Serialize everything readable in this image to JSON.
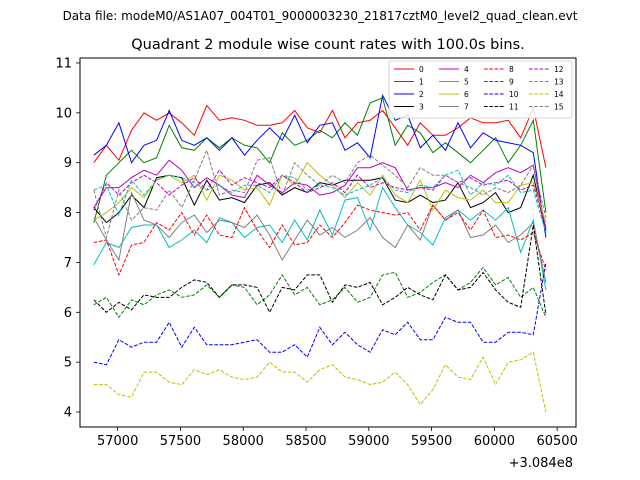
{
  "chart_data": {
    "type": "line",
    "suptitle": "Data file: modeM0/AS1A07_004T01_9000003230_21817cztM0_level2_quad_clean.evt",
    "title": "Quadrant 2 module wise count rates with 100.0s bins.",
    "xlabel": "",
    "ylabel": "",
    "x_offset_label": "+3.084e8",
    "xlim": [
      56700,
      60650
    ],
    "ylim": [
      3.7,
      11.1
    ],
    "xticks": [
      57000,
      57500,
      58000,
      58500,
      59000,
      59500,
      60000,
      60500
    ],
    "yticks": [
      4,
      5,
      6,
      7,
      8,
      9,
      10,
      11
    ],
    "grid": false,
    "legend_position": "upper right",
    "x": [
      56810,
      56910,
      57010,
      57110,
      57210,
      57310,
      57410,
      57510,
      57610,
      57710,
      57810,
      57910,
      58010,
      58110,
      58210,
      58310,
      58410,
      58510,
      58610,
      58710,
      58810,
      58910,
      59010,
      59110,
      59210,
      59310,
      59410,
      59510,
      59610,
      59710,
      59810,
      59910,
      60010,
      60110,
      60210,
      60310,
      60410
    ],
    "series": [
      {
        "name": "0",
        "color": "#ff0000",
        "dash": "solid",
        "values": [
          9.0,
          9.35,
          9.05,
          9.65,
          10.0,
          9.85,
          10.0,
          9.8,
          9.55,
          10.15,
          9.85,
          9.9,
          9.85,
          9.75,
          9.75,
          9.8,
          10.05,
          9.7,
          9.6,
          10.05,
          9.5,
          9.8,
          9.85,
          10.05,
          9.7,
          9.35,
          9.8,
          9.55,
          9.55,
          9.7,
          9.9,
          9.8,
          9.8,
          9.85,
          9.5,
          10.1,
          8.9
        ]
      },
      {
        "name": "1",
        "color": "#008000",
        "dash": "solid",
        "values": [
          7.8,
          8.75,
          9.0,
          9.25,
          9.0,
          9.1,
          9.75,
          9.3,
          9.25,
          9.5,
          9.3,
          9.5,
          9.35,
          9.3,
          9.0,
          9.6,
          9.35,
          9.45,
          9.65,
          9.5,
          9.8,
          9.55,
          10.2,
          10.3,
          9.35,
          9.75,
          9.6,
          9.2,
          9.4,
          9.2,
          9.0,
          9.25,
          9.5,
          9.0,
          9.35,
          9.85,
          8.0
        ]
      },
      {
        "name": "2",
        "color": "#0000ff",
        "dash": "solid",
        "values": [
          9.15,
          9.35,
          9.8,
          9.0,
          9.35,
          9.45,
          10.05,
          9.45,
          9.35,
          9.5,
          9.25,
          9.5,
          9.15,
          9.45,
          9.7,
          9.45,
          9.95,
          9.4,
          9.75,
          9.8,
          9.25,
          9.4,
          9.1,
          10.35,
          9.85,
          9.95,
          9.3,
          9.55,
          9.25,
          9.8,
          9.3,
          9.6,
          9.45,
          9.4,
          9.35,
          9.2,
          7.5
        ]
      },
      {
        "name": "3",
        "color": "#000000",
        "dash": "solid",
        "values": [
          8.1,
          7.8,
          8.0,
          8.35,
          8.1,
          8.7,
          8.75,
          8.7,
          8.15,
          8.65,
          8.25,
          8.3,
          8.2,
          8.55,
          8.6,
          8.35,
          8.5,
          8.4,
          8.6,
          8.55,
          8.65,
          8.65,
          8.65,
          8.7,
          8.25,
          8.2,
          8.35,
          8.2,
          8.25,
          8.6,
          8.1,
          8.2,
          8.4,
          8.0,
          8.1,
          8.75,
          7.6
        ]
      },
      {
        "name": "4",
        "color": "#bf00bf",
        "dash": "solid",
        "values": [
          8.1,
          8.5,
          8.5,
          8.7,
          8.85,
          8.75,
          9.05,
          8.85,
          8.5,
          8.7,
          8.55,
          8.35,
          8.3,
          8.75,
          8.55,
          8.4,
          8.6,
          8.55,
          8.35,
          8.4,
          8.55,
          8.9,
          8.9,
          9.0,
          8.9,
          8.45,
          8.5,
          8.5,
          8.6,
          8.5,
          8.75,
          8.6,
          8.8,
          8.9,
          8.8,
          8.95,
          7.65
        ]
      },
      {
        "name": "5",
        "color": "#00bfbf",
        "dash": "solid",
        "values": [
          6.95,
          7.4,
          7.3,
          7.7,
          7.75,
          7.75,
          7.3,
          7.45,
          7.65,
          7.4,
          7.9,
          7.8,
          7.5,
          7.7,
          7.75,
          7.4,
          7.85,
          7.45,
          8.05,
          7.55,
          8.25,
          8.3,
          7.65,
          8.5,
          8.1,
          7.75,
          7.6,
          7.35,
          7.9,
          8.05,
          7.85,
          8.05,
          7.85,
          8.1,
          7.2,
          7.85,
          6.45
        ]
      },
      {
        "name": "6",
        "color": "#bfbf00",
        "dash": "solid",
        "values": [
          7.85,
          8.0,
          8.2,
          8.5,
          8.3,
          8.65,
          8.75,
          8.6,
          8.75,
          8.25,
          8.75,
          8.65,
          8.45,
          8.5,
          8.15,
          8.75,
          8.55,
          9.0,
          8.75,
          8.55,
          8.3,
          8.6,
          8.35,
          8.75,
          8.35,
          8.2,
          8.65,
          8.05,
          8.45,
          8.3,
          8.25,
          8.45,
          8.2,
          8.2,
          8.55,
          8.6,
          7.8
        ]
      },
      {
        "name": "7",
        "color": "#808080",
        "dash": "solid",
        "values": [
          7.9,
          7.45,
          7.05,
          8.4,
          7.85,
          7.75,
          7.5,
          7.8,
          7.95,
          7.6,
          7.85,
          7.8,
          7.7,
          7.95,
          7.55,
          7.05,
          7.45,
          7.85,
          7.55,
          7.7,
          7.5,
          7.65,
          7.9,
          7.5,
          7.3,
          7.75,
          7.45,
          8.15,
          7.85,
          8.05,
          7.5,
          7.55,
          7.75,
          7.4,
          7.55,
          7.8,
          6.6
        ]
      },
      {
        "name": "8",
        "color": "#ff0000",
        "dash": "dashed",
        "values": [
          7.4,
          7.45,
          6.75,
          7.35,
          7.4,
          7.8,
          7.65,
          8.0,
          7.55,
          7.95,
          7.55,
          7.5,
          8.1,
          7.65,
          7.3,
          7.75,
          7.35,
          7.4,
          7.75,
          7.5,
          7.8,
          8.15,
          8.05,
          8.0,
          7.95,
          8.0,
          7.65,
          8.15,
          7.85,
          8.0,
          7.65,
          8.05,
          7.5,
          7.55,
          7.45,
          7.6,
          6.85
        ]
      },
      {
        "name": "9",
        "color": "#008000",
        "dash": "dashed",
        "values": [
          6.15,
          6.3,
          5.9,
          6.25,
          6.15,
          6.35,
          6.45,
          6.3,
          6.35,
          6.55,
          6.3,
          6.55,
          6.5,
          6.15,
          6.35,
          6.75,
          6.35,
          6.5,
          6.15,
          6.25,
          6.5,
          6.2,
          6.3,
          6.75,
          6.8,
          6.3,
          6.4,
          6.6,
          6.75,
          6.45,
          6.6,
          6.9,
          6.55,
          6.7,
          6.3,
          6.5,
          5.9
        ]
      },
      {
        "name": "10",
        "color": "#0000ff",
        "dash": "dashed",
        "values": [
          5.0,
          4.95,
          5.45,
          5.3,
          5.4,
          5.4,
          5.8,
          5.3,
          5.7,
          5.35,
          5.35,
          5.35,
          5.4,
          5.45,
          5.2,
          5.2,
          5.35,
          5.1,
          5.7,
          5.35,
          5.6,
          5.35,
          5.2,
          5.65,
          5.55,
          5.8,
          5.45,
          5.45,
          5.9,
          5.8,
          5.8,
          5.4,
          5.4,
          5.6,
          5.6,
          5.55,
          7.0
        ]
      },
      {
        "name": "11",
        "color": "#000000",
        "dash": "dashed",
        "values": [
          6.25,
          6.0,
          6.2,
          6.05,
          6.35,
          6.3,
          6.3,
          6.5,
          6.65,
          6.6,
          6.3,
          6.55,
          6.55,
          6.5,
          6.0,
          6.5,
          6.45,
          6.75,
          6.75,
          6.2,
          6.55,
          6.5,
          6.6,
          6.15,
          6.3,
          6.5,
          6.35,
          6.25,
          6.75,
          6.45,
          6.5,
          6.8,
          6.45,
          6.2,
          6.1,
          7.75,
          5.95
        ]
      },
      {
        "name": "12",
        "color": "#bf00bf",
        "dash": "dashed",
        "values": [
          8.05,
          8.6,
          8.35,
          8.6,
          8.75,
          8.6,
          8.35,
          8.55,
          8.7,
          8.45,
          8.85,
          8.55,
          8.7,
          8.6,
          8.5,
          8.75,
          8.6,
          8.4,
          8.5,
          8.6,
          8.4,
          8.75,
          8.5,
          8.6,
          8.5,
          8.45,
          8.5,
          8.45,
          8.75,
          8.6,
          8.7,
          8.55,
          8.6,
          8.65,
          8.45,
          8.55,
          7.7
        ]
      },
      {
        "name": "13",
        "color": "#00bfbf",
        "dash": "dashed",
        "values": [
          8.45,
          8.55,
          7.95,
          8.65,
          8.35,
          8.65,
          8.75,
          8.7,
          8.6,
          8.45,
          8.55,
          8.4,
          8.55,
          8.55,
          8.4,
          8.75,
          8.7,
          8.45,
          8.55,
          8.5,
          8.35,
          8.45,
          8.55,
          8.7,
          8.45,
          8.4,
          8.55,
          8.5,
          8.75,
          8.85,
          8.35,
          8.6,
          8.55,
          8.75,
          8.4,
          8.45,
          7.6
        ]
      },
      {
        "name": "14",
        "color": "#bfbf00",
        "dash": "dashed",
        "values": [
          4.55,
          4.55,
          4.35,
          4.3,
          4.8,
          4.8,
          4.6,
          4.55,
          4.85,
          4.75,
          4.85,
          4.7,
          4.65,
          4.7,
          5.0,
          4.8,
          4.8,
          4.6,
          4.85,
          4.95,
          4.7,
          4.65,
          4.55,
          4.6,
          4.8,
          4.55,
          4.15,
          4.45,
          4.95,
          4.7,
          4.65,
          5.1,
          4.55,
          5.0,
          5.05,
          5.2,
          4.0
        ]
      },
      {
        "name": "15",
        "color": "#808080",
        "dash": "dashed",
        "values": [
          8.45,
          7.5,
          8.45,
          7.85,
          8.1,
          8.05,
          8.45,
          8.1,
          8.65,
          9.25,
          8.35,
          8.45,
          8.4,
          9.05,
          9.1,
          8.35,
          9.0,
          8.75,
          8.55,
          8.75,
          8.6,
          9.0,
          9.15,
          8.95,
          8.75,
          8.5,
          8.9,
          8.75,
          8.75,
          8.6,
          8.5,
          8.35,
          8.5,
          8.4,
          8.55,
          8.95,
          7.9
        ]
      }
    ]
  }
}
